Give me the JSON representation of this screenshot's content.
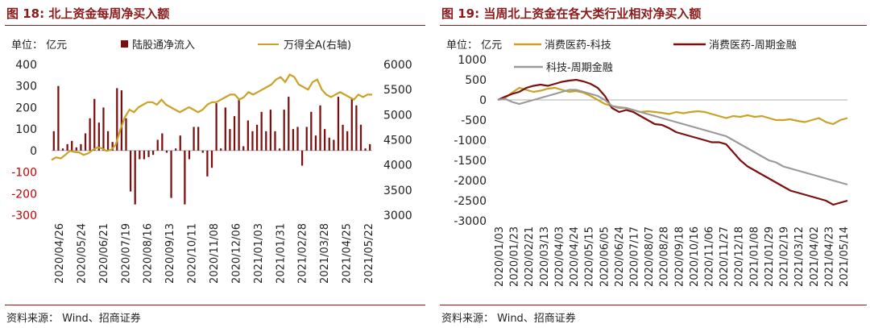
{
  "colors": {
    "title": "#8b1a1a",
    "dark_red": "#7b0f0f",
    "gold": "#c9a227",
    "gray": "#9a9a9a",
    "axis_red": "#c00000"
  },
  "left_chart": {
    "title": "图 18:  北上资金每周净买入额",
    "unit_label": "单位： 亿元",
    "source": "资料来源： Wind、招商证券",
    "chart_data": {
      "type": "bar",
      "legend": [
        "陆股通净流入",
        "万得全A(右轴)"
      ],
      "y_left": {
        "ticks": [
          "400",
          "300",
          "200",
          "100",
          "0",
          "-100",
          "-200",
          "-300"
        ],
        "ylim": [
          -300,
          400
        ]
      },
      "y_right": {
        "ticks": [
          "6000",
          "5500",
          "5000",
          "4500",
          "4000",
          "3500",
          "3000"
        ],
        "ylim": [
          3000,
          6000
        ]
      },
      "x_ticks": [
        "2020/04/26",
        "2020/05/24",
        "2020/06/21",
        "2020/07/19",
        "2020/08/16",
        "2020/09/13",
        "2020/10/11",
        "2020/11/08",
        "2020/12/06",
        "2021/01/03",
        "2021/01/31",
        "2021/02/28",
        "2021/03/28",
        "2021/04/25",
        "2021/05/22"
      ],
      "series": [
        {
          "name": "陆股通净流入",
          "type": "bar",
          "values": [
            90,
            300,
            10,
            30,
            45,
            15,
            30,
            80,
            150,
            240,
            130,
            200,
            90,
            40,
            290,
            280,
            150,
            -190,
            -250,
            -40,
            -40,
            -30,
            -20,
            50,
            80,
            -10,
            -220,
            10,
            70,
            -250,
            -40,
            110,
            110,
            -10,
            -120,
            -80,
            220,
            10,
            200,
            100,
            160,
            240,
            20,
            140,
            90,
            120,
            180,
            90,
            190,
            90,
            10,
            190,
            250,
            100,
            110,
            -70,
            110,
            180,
            70,
            210,
            100,
            60,
            50,
            250,
            120,
            90,
            240,
            210,
            120,
            10,
            30
          ],
          "points_note": ""
        },
        {
          "name": "万得全A(右轴)",
          "type": "line",
          "values": [
            4100,
            4150,
            4130,
            4200,
            4280,
            4260,
            4250,
            4200,
            4230,
            4300,
            4350,
            4330,
            4280,
            4300,
            4400,
            4700,
            4950,
            5100,
            5050,
            5150,
            5200,
            5250,
            5250,
            5200,
            5300,
            5200,
            5150,
            5100,
            5050,
            5100,
            5150,
            5100,
            5050,
            5100,
            5200,
            5250,
            5250,
            5300,
            5350,
            5400,
            5400,
            5300,
            5350,
            5450,
            5400,
            5450,
            5500,
            5550,
            5600,
            5700,
            5750,
            5650,
            5800,
            5750,
            5600,
            5550,
            5500,
            5650,
            5700,
            5500,
            5400,
            5350,
            5400,
            5450,
            5400,
            5350,
            5300,
            5400,
            5350,
            5400,
            5400
          ]
        }
      ]
    }
  },
  "right_chart": {
    "title": "图 19:  当周北上资金在各大类行业相对净买入额",
    "unit_label": "单位： 亿元",
    "source": "资料来源： Wind、招商证券",
    "chart_data": {
      "type": "line",
      "y": {
        "ticks": [
          "1000",
          "500",
          "0",
          "-500",
          "-1000",
          "-1500",
          "-2000",
          "-2500",
          "-3000"
        ],
        "ylim": [
          -3000,
          1000
        ]
      },
      "x_ticks": [
        "2020/01/03",
        "2020/01/23",
        "2020/02/21",
        "2020/03/13",
        "2020/04/03",
        "2020/04/24",
        "2020/05/15",
        "2020/06/05",
        "2020/06/24",
        "2020/07/17",
        "2020/08/07",
        "2020/08/28",
        "2020/09/18",
        "2020/10/16",
        "2020/11/06",
        "2020/11/27",
        "2020/12/18",
        "2021/01/08",
        "2021/01/29",
        "2021/02/19",
        "2021/03/12",
        "2021/04/02",
        "2021/04/23",
        "2021/05/14"
      ],
      "series": [
        {
          "name": "消费医药-科技",
          "values": [
            0,
            50,
            180,
            300,
            250,
            200,
            230,
            280,
            300,
            250,
            200,
            220,
            180,
            100,
            0,
            -100,
            -150,
            -180,
            -200,
            -250,
            -300,
            -280,
            -300,
            -320,
            -350,
            -300,
            -330,
            -300,
            -280,
            -300,
            -350,
            -400,
            -450,
            -400,
            -420,
            -380,
            -420,
            -400,
            -450,
            -500,
            -500,
            -480,
            -520,
            -550,
            -500,
            -450,
            -550,
            -600,
            -500,
            -450
          ]
        },
        {
          "name": "消费医药-周期金融",
          "values": [
            0,
            80,
            150,
            200,
            300,
            350,
            380,
            350,
            400,
            450,
            480,
            500,
            460,
            400,
            300,
            100,
            -200,
            -300,
            -250,
            -300,
            -400,
            -500,
            -600,
            -620,
            -700,
            -800,
            -850,
            -900,
            -950,
            -1000,
            -1050,
            -1050,
            -1100,
            -1300,
            -1500,
            -1650,
            -1750,
            -1850,
            -1950,
            -2050,
            -2150,
            -2250,
            -2300,
            -2350,
            -2400,
            -2450,
            -2500,
            -2600,
            -2550,
            -2500
          ]
        },
        {
          "name": "科技-周期金融",
          "values": [
            0,
            30,
            -50,
            -100,
            -50,
            0,
            50,
            100,
            150,
            200,
            250,
            250,
            200,
            150,
            100,
            0,
            -150,
            -200,
            -200,
            -250,
            -300,
            -350,
            -400,
            -450,
            -500,
            -550,
            -600,
            -650,
            -700,
            -750,
            -800,
            -850,
            -900,
            -1000,
            -1100,
            -1200,
            -1300,
            -1400,
            -1500,
            -1550,
            -1650,
            -1700,
            -1750,
            -1800,
            -1850,
            -1900,
            -1950,
            -2000,
            -2050,
            -2100
          ]
        }
      ]
    }
  }
}
